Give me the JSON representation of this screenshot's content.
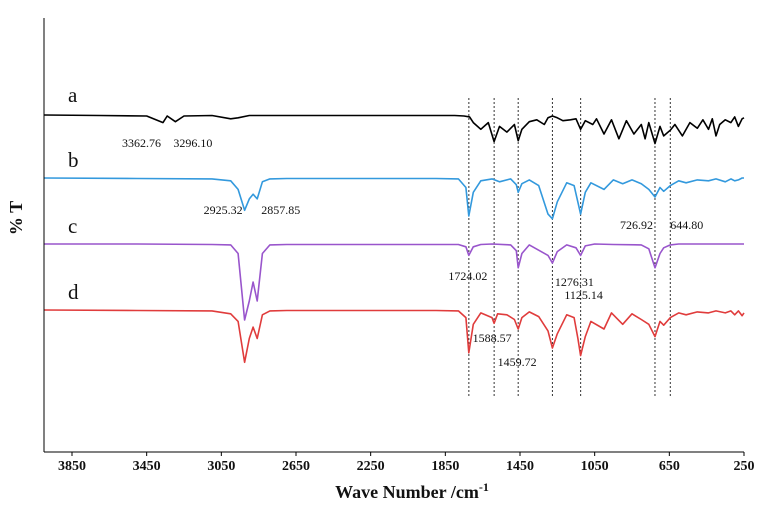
{
  "chart_data": {
    "type": "line",
    "xlabel": "Wave Number /cm",
    "xlabel_superscript": "-1",
    "ylabel": "% T",
    "x_reversed": true,
    "xlim": [
      4000,
      250
    ],
    "xticks": [
      3850,
      3450,
      3050,
      2650,
      2250,
      1850,
      1450,
      1050,
      650,
      250
    ],
    "grid": false,
    "series": [
      {
        "name": "a",
        "color": "#000000",
        "x": [
          4000,
          3700,
          3450,
          3362.76,
          3340,
          3296.1,
          3250,
          3100,
          3000,
          2960,
          2900,
          2500,
          2000,
          1800,
          1750,
          1720,
          1700,
          1660,
          1620,
          1588.57,
          1560,
          1520,
          1480,
          1459.72,
          1440,
          1400,
          1360,
          1320,
          1300,
          1276.31,
          1250,
          1220,
          1180,
          1150,
          1125.14,
          1100,
          1060,
          1040,
          1000,
          960,
          920,
          880,
          840,
          800,
          780,
          760,
          726.92,
          700,
          680,
          644.8,
          620,
          580,
          540,
          500,
          470,
          440,
          420,
          400,
          380,
          350,
          320,
          300,
          280,
          260,
          250
        ],
        "y": [
          100,
          99.5,
          99,
          92,
          99,
          93,
          99,
          99.5,
          96,
          97,
          99.5,
          99.5,
          99.5,
          99.5,
          99,
          98,
          92,
          85,
          92,
          72,
          88,
          82,
          90,
          73,
          85,
          93,
          95,
          90,
          97,
          99,
          97,
          94,
          95,
          96,
          85,
          94,
          90,
          96,
          80,
          95,
          75,
          94,
          80,
          90,
          75,
          92,
          70,
          88,
          78,
          84,
          90,
          78,
          92,
          86,
          95,
          85,
          96,
          78,
          90,
          95,
          92,
          98,
          88,
          96,
          97
        ]
      },
      {
        "name": "b",
        "color": "#3399dd",
        "x": [
          4000,
          3500,
          3100,
          3000,
          2960,
          2925.32,
          2900,
          2880,
          2857.85,
          2830,
          2790,
          2700,
          2300,
          1900,
          1780,
          1740,
          1724.02,
          1700,
          1660,
          1600,
          1560,
          1500,
          1470,
          1459.72,
          1440,
          1400,
          1350,
          1300,
          1276.31,
          1250,
          1200,
          1160,
          1125.14,
          1100,
          1070,
          1000,
          950,
          900,
          850,
          800,
          760,
          726.92,
          700,
          680,
          644.8,
          600,
          560,
          500,
          440,
          400,
          350,
          320,
          300,
          280,
          260,
          250
        ],
        "y": [
          100,
          99.5,
          99,
          97,
          88,
          66,
          78,
          83,
          78,
          96,
          99,
          99.5,
          99.5,
          99.5,
          99,
          90,
          60,
          85,
          97,
          99,
          96,
          99,
          93,
          85,
          94,
          98,
          92,
          62,
          57,
          75,
          95,
          92,
          62,
          85,
          95,
          88,
          98,
          94,
          98,
          94,
          88,
          80,
          90,
          86,
          92,
          97,
          95,
          98,
          97,
          99,
          96,
          99,
          97,
          98,
          100,
          100
        ]
      },
      {
        "name": "c",
        "color": "#9955cc",
        "x": [
          4000,
          3500,
          3100,
          3000,
          2960,
          2925.32,
          2900,
          2880,
          2857.85,
          2830,
          2790,
          2700,
          2300,
          1900,
          1780,
          1740,
          1724.02,
          1700,
          1660,
          1600,
          1500,
          1470,
          1459.72,
          1440,
          1400,
          1300,
          1276.31,
          1250,
          1200,
          1150,
          1125.14,
          1100,
          1050,
          950,
          800,
          760,
          726.92,
          700,
          680,
          644.8,
          600,
          500,
          400,
          300,
          250
        ],
        "y": [
          100,
          100,
          99.5,
          99,
          90,
          20,
          40,
          60,
          40,
          90,
          99,
          99.5,
          99.5,
          99.5,
          99.5,
          97,
          88,
          97,
          99.5,
          100,
          99,
          93,
          75,
          90,
          99,
          88,
          80,
          92,
          99,
          96,
          88,
          98,
          100,
          99.5,
          99,
          95,
          75,
          90,
          96,
          99,
          100,
          100,
          100,
          100,
          100
        ]
      },
      {
        "name": "d",
        "color": "#e03c3c",
        "x": [
          4000,
          3500,
          3100,
          3000,
          2960,
          2925.32,
          2900,
          2880,
          2857.85,
          2830,
          2790,
          2700,
          2300,
          1900,
          1780,
          1740,
          1724.02,
          1700,
          1660,
          1600,
          1588.57,
          1570,
          1520,
          1480,
          1459.72,
          1440,
          1400,
          1350,
          1300,
          1276.31,
          1250,
          1200,
          1160,
          1140,
          1125.14,
          1100,
          1070,
          1000,
          960,
          900,
          850,
          800,
          760,
          726.92,
          700,
          680,
          644.8,
          600,
          560,
          500,
          440,
          400,
          350,
          320,
          300,
          280,
          260,
          250
        ],
        "y": [
          100,
          99.5,
          99,
          96,
          88,
          45,
          70,
          82,
          70,
          95,
          99,
          99.5,
          99.5,
          99.5,
          99,
          92,
          55,
          85,
          97,
          92,
          86,
          96,
          95,
          90,
          80,
          92,
          98,
          93,
          78,
          60,
          75,
          95,
          92,
          70,
          52,
          72,
          88,
          80,
          97,
          85,
          96,
          90,
          85,
          72,
          88,
          84,
          92,
          97,
          95,
          98,
          97,
          99,
          97,
          99,
          95,
          99,
          94,
          97
        ]
      }
    ],
    "trace_labels": [
      "a",
      "b",
      "c",
      "d"
    ],
    "vlines": [
      1724.02,
      1588.57,
      1459.72,
      1276.31,
      1125.14,
      726.92,
      644.8
    ],
    "annotations": [
      {
        "text": "3362.76",
        "x": 3362.76,
        "trace": "a"
      },
      {
        "text": "3296.10",
        "x": 3296.1,
        "trace": "a"
      },
      {
        "text": "2925.32",
        "x": 2925.32,
        "trace": "b"
      },
      {
        "text": "2857.85",
        "x": 2857.85,
        "trace": "b"
      },
      {
        "text": "726.92",
        "x": 726.92,
        "trace": "b"
      },
      {
        "text": "644.80",
        "x": 644.8,
        "trace": "b"
      },
      {
        "text": "1724.02",
        "x": 1724.02,
        "trace": "c"
      },
      {
        "text": "1276.31",
        "x": 1276.31,
        "trace": "c"
      },
      {
        "text": "1125.14",
        "x": 1125.14,
        "trace": "c"
      },
      {
        "text": "1588.57",
        "x": 1588.57,
        "trace": "d"
      },
      {
        "text": "1459.72",
        "x": 1459.72,
        "trace": "d"
      }
    ]
  }
}
